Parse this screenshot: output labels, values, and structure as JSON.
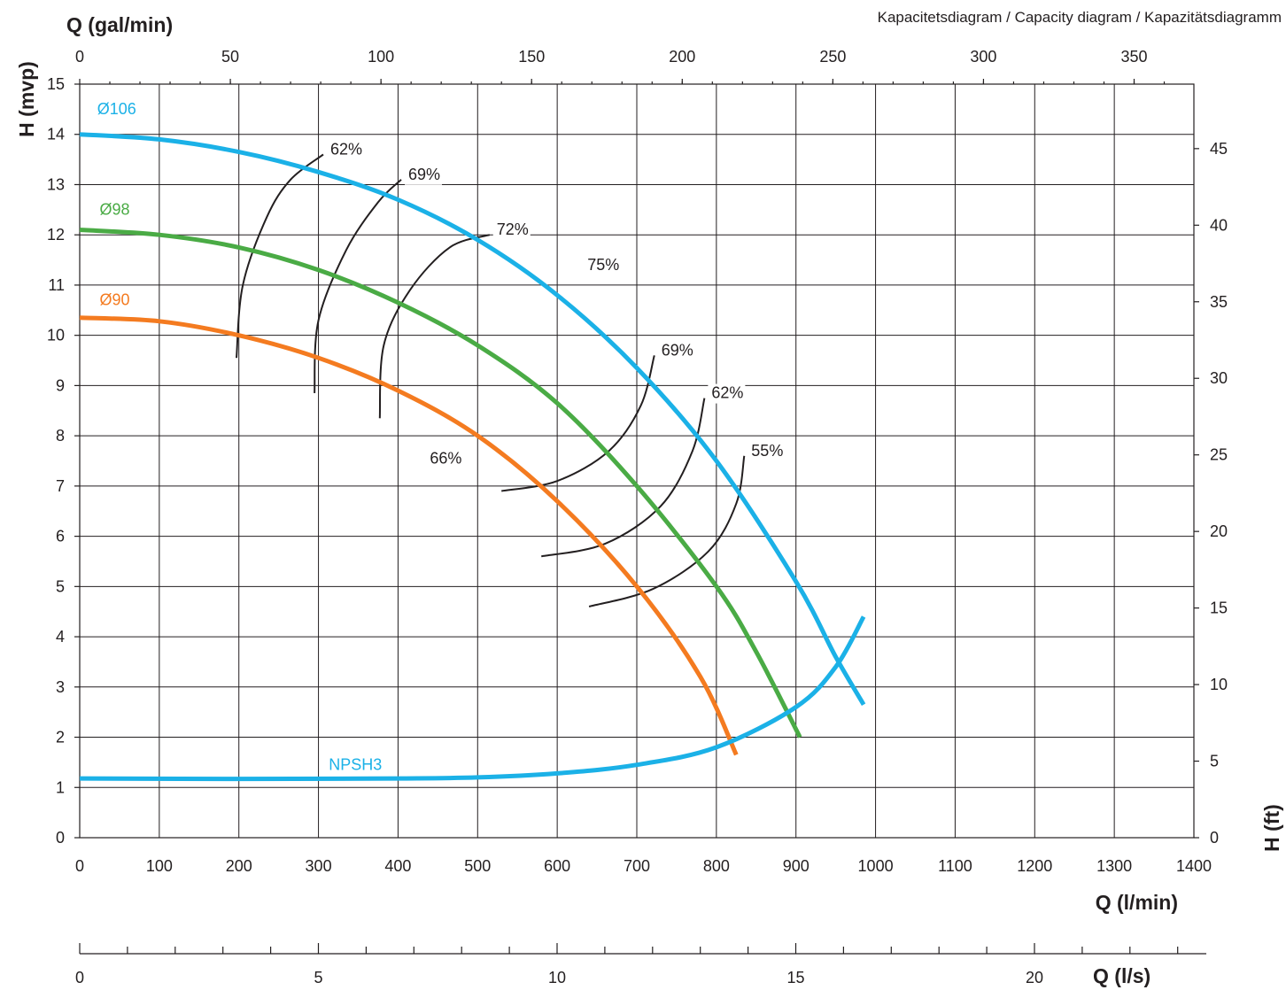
{
  "chart_data": {
    "type": "line",
    "title": "Kapacitetsdiagram / Capacity diagram / Kapazitätsdiagramm",
    "x_axis": {
      "label": "Q (l/min)",
      "range": [
        0,
        1400
      ],
      "ticks": [
        0,
        100,
        200,
        300,
        400,
        500,
        600,
        700,
        800,
        900,
        1000,
        1100,
        1200,
        1300,
        1400
      ]
    },
    "x_axis_top": {
      "label": "Q (gal/min)",
      "ticks": [
        0,
        50,
        100,
        150,
        200,
        250,
        300,
        350
      ]
    },
    "x_axis_bottom2": {
      "label": "Q (l/s)",
      "ticks": [
        0,
        5,
        10,
        15,
        20
      ]
    },
    "y_axis": {
      "label": "H (mvp)",
      "range": [
        0,
        15
      ],
      "ticks": [
        0,
        1,
        2,
        3,
        4,
        5,
        6,
        7,
        8,
        9,
        10,
        11,
        12,
        13,
        14,
        15
      ]
    },
    "y_axis_right": {
      "label": "H (ft)",
      "ticks": [
        0,
        5,
        10,
        15,
        20,
        25,
        30,
        35,
        40,
        45
      ]
    },
    "grid": true,
    "series": [
      {
        "name": "Ø106",
        "color": "#1bb1e7",
        "x": [
          0,
          100,
          200,
          300,
          400,
          500,
          600,
          700,
          800,
          900,
          950,
          985
        ],
        "y": [
          14.0,
          13.9,
          13.65,
          13.25,
          12.7,
          11.9,
          10.8,
          9.35,
          7.5,
          5.1,
          3.6,
          2.65
        ]
      },
      {
        "name": "Ø98",
        "color": "#4aab45",
        "x": [
          0,
          100,
          200,
          300,
          400,
          500,
          600,
          700,
          800,
          850,
          905
        ],
        "y": [
          12.1,
          12.0,
          11.75,
          11.3,
          10.65,
          9.8,
          8.65,
          7.0,
          5.0,
          3.7,
          2.0
        ]
      },
      {
        "name": "Ø90",
        "color": "#f47b20",
        "x": [
          0,
          100,
          200,
          300,
          400,
          500,
          600,
          700,
          780,
          825
        ],
        "y": [
          10.35,
          10.28,
          10.0,
          9.55,
          8.9,
          8.0,
          6.7,
          5.0,
          3.2,
          1.65
        ]
      },
      {
        "name": "NPSH3",
        "color": "#1bb1e7",
        "x": [
          0,
          200,
          400,
          500,
          600,
          700,
          800,
          900,
          950,
          985
        ],
        "y": [
          1.18,
          1.17,
          1.18,
          1.2,
          1.28,
          1.45,
          1.8,
          2.6,
          3.4,
          4.4
        ]
      }
    ],
    "efficiency_curves": [
      {
        "label": "62%",
        "x": [
          197,
          205,
          235,
          265,
          306
        ],
        "y": [
          9.55,
          11.0,
          12.35,
          13.1,
          13.6
        ]
      },
      {
        "label": "69%",
        "x": [
          295,
          300,
          335,
          375,
          404
        ],
        "y": [
          8.85,
          10.3,
          11.7,
          12.65,
          13.1
        ]
      },
      {
        "label": "72%",
        "x": [
          377,
          382,
          415,
          465,
          515
        ],
        "y": [
          8.35,
          9.8,
          10.9,
          11.75,
          12.0
        ]
      },
      {
        "label": "69%",
        "x": [
          530,
          600,
          665,
          705,
          722
        ],
        "y": [
          6.9,
          7.1,
          7.7,
          8.6,
          9.6
        ]
      },
      {
        "label": "62%",
        "x": [
          580,
          660,
          730,
          770,
          785
        ],
        "y": [
          5.6,
          5.85,
          6.6,
          7.7,
          8.75
        ]
      },
      {
        "label": "55%",
        "x": [
          640,
          720,
          790,
          825,
          835
        ],
        "y": [
          4.6,
          4.95,
          5.7,
          6.65,
          7.6
        ]
      }
    ],
    "annotations": [
      {
        "text": "75%",
        "x": 638,
        "y": 11.3
      },
      {
        "text": "66%",
        "x": 440,
        "y": 7.45
      },
      {
        "text": "Ø106",
        "x": 22,
        "y": 14.4
      },
      {
        "text": "Ø98",
        "x": 25,
        "y": 12.4
      },
      {
        "text": "Ø90",
        "x": 25,
        "y": 10.6
      },
      {
        "text": "NPSH3",
        "x": 313,
        "y": 1.35
      }
    ]
  }
}
